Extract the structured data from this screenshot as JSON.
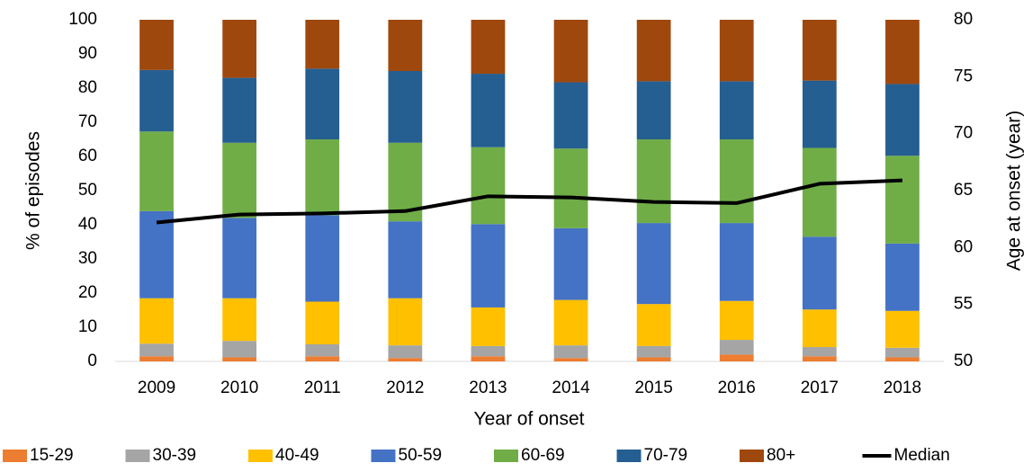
{
  "chart_data": {
    "type": "stacked_bar_line",
    "x_label": "Year of onset",
    "y_label": "% of episodes",
    "y2_label": "Age at onset (year)",
    "categories": [
      "2009",
      "2010",
      "2011",
      "2012",
      "2013",
      "2014",
      "2015",
      "2016",
      "2017",
      "2018"
    ],
    "series": [
      {
        "name": "15-29",
        "color": "#ed7d31",
        "values": [
          1.5,
          1.2,
          1.5,
          1,
          1.5,
          1,
          1.2,
          2,
          1.5,
          1.2
        ]
      },
      {
        "name": "30-39",
        "color": "#a5a5a5",
        "values": [
          3.7,
          4.8,
          3.5,
          3.7,
          3,
          3.7,
          3.3,
          4.3,
          2.7,
          2.8
        ]
      },
      {
        "name": "40-49",
        "color": "#ffc000",
        "values": [
          13.3,
          12.5,
          12.5,
          13.8,
          11.3,
          13.3,
          12.3,
          11.4,
          11,
          10.8
        ]
      },
      {
        "name": "50-59",
        "color": "#4472c4",
        "values": [
          25.5,
          23.5,
          25.3,
          22.5,
          24.4,
          21,
          23.7,
          22.8,
          21.3,
          19.7
        ]
      },
      {
        "name": "60-69",
        "color": "#70ad47",
        "values": [
          23.3,
          22,
          22.2,
          23,
          22.5,
          23.3,
          24.5,
          24.5,
          26,
          25.7
        ]
      },
      {
        "name": "70-79",
        "color": "#255e91",
        "values": [
          18,
          19,
          20.7,
          21,
          21.5,
          19.4,
          17,
          17,
          19.7,
          21
        ]
      },
      {
        "name": "80+",
        "color": "#9e480e",
        "values": [
          14.7,
          17,
          14.3,
          15,
          15.8,
          18.3,
          18,
          18,
          17.8,
          18.8
        ]
      },
      {
        "name": "Median",
        "color": "#000000",
        "axis": "y2",
        "values": [
          62.2,
          62.9,
          63.0,
          63.2,
          64.5,
          64.4,
          64.0,
          63.9,
          65.6,
          65.9
        ]
      }
    ],
    "ylim": [
      0,
      100
    ],
    "yticks": [
      0,
      10,
      20,
      30,
      40,
      50,
      60,
      70,
      80,
      90,
      100
    ],
    "y2lim": [
      50,
      80
    ],
    "y2ticks": [
      50,
      55,
      60,
      65,
      70,
      75,
      80
    ],
    "legend": "bottom"
  }
}
